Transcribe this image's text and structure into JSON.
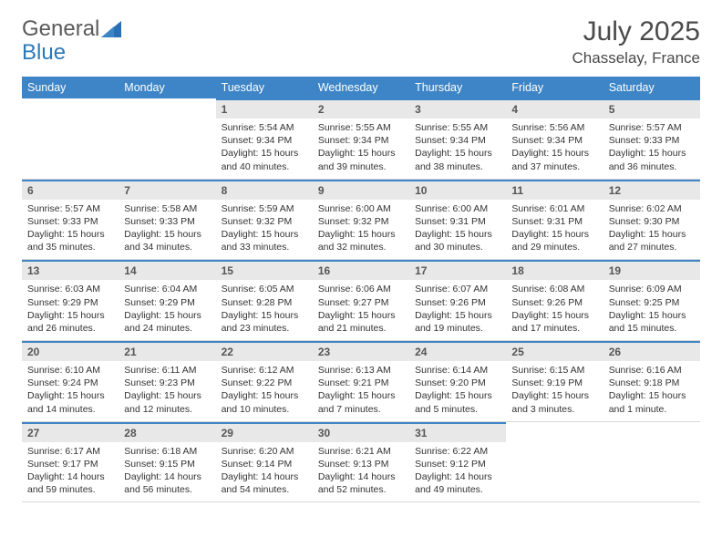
{
  "brand": {
    "name_part1": "General",
    "name_part2": "Blue"
  },
  "title": "July 2025",
  "location": "Chasselay, France",
  "colors": {
    "header_bg": "#3d85c6",
    "header_text": "#ffffff",
    "accent_border": "#3d85c6",
    "daynum_bg": "#e8e8e8"
  },
  "days_of_week": [
    "Sunday",
    "Monday",
    "Tuesday",
    "Wednesday",
    "Thursday",
    "Friday",
    "Saturday"
  ],
  "weeks": [
    [
      {
        "n": "",
        "sunrise": "",
        "sunset": "",
        "daylight": ""
      },
      {
        "n": "",
        "sunrise": "",
        "sunset": "",
        "daylight": ""
      },
      {
        "n": "1",
        "sunrise": "Sunrise: 5:54 AM",
        "sunset": "Sunset: 9:34 PM",
        "daylight": "Daylight: 15 hours and 40 minutes."
      },
      {
        "n": "2",
        "sunrise": "Sunrise: 5:55 AM",
        "sunset": "Sunset: 9:34 PM",
        "daylight": "Daylight: 15 hours and 39 minutes."
      },
      {
        "n": "3",
        "sunrise": "Sunrise: 5:55 AM",
        "sunset": "Sunset: 9:34 PM",
        "daylight": "Daylight: 15 hours and 38 minutes."
      },
      {
        "n": "4",
        "sunrise": "Sunrise: 5:56 AM",
        "sunset": "Sunset: 9:34 PM",
        "daylight": "Daylight: 15 hours and 37 minutes."
      },
      {
        "n": "5",
        "sunrise": "Sunrise: 5:57 AM",
        "sunset": "Sunset: 9:33 PM",
        "daylight": "Daylight: 15 hours and 36 minutes."
      }
    ],
    [
      {
        "n": "6",
        "sunrise": "Sunrise: 5:57 AM",
        "sunset": "Sunset: 9:33 PM",
        "daylight": "Daylight: 15 hours and 35 minutes."
      },
      {
        "n": "7",
        "sunrise": "Sunrise: 5:58 AM",
        "sunset": "Sunset: 9:33 PM",
        "daylight": "Daylight: 15 hours and 34 minutes."
      },
      {
        "n": "8",
        "sunrise": "Sunrise: 5:59 AM",
        "sunset": "Sunset: 9:32 PM",
        "daylight": "Daylight: 15 hours and 33 minutes."
      },
      {
        "n": "9",
        "sunrise": "Sunrise: 6:00 AM",
        "sunset": "Sunset: 9:32 PM",
        "daylight": "Daylight: 15 hours and 32 minutes."
      },
      {
        "n": "10",
        "sunrise": "Sunrise: 6:00 AM",
        "sunset": "Sunset: 9:31 PM",
        "daylight": "Daylight: 15 hours and 30 minutes."
      },
      {
        "n": "11",
        "sunrise": "Sunrise: 6:01 AM",
        "sunset": "Sunset: 9:31 PM",
        "daylight": "Daylight: 15 hours and 29 minutes."
      },
      {
        "n": "12",
        "sunrise": "Sunrise: 6:02 AM",
        "sunset": "Sunset: 9:30 PM",
        "daylight": "Daylight: 15 hours and 27 minutes."
      }
    ],
    [
      {
        "n": "13",
        "sunrise": "Sunrise: 6:03 AM",
        "sunset": "Sunset: 9:29 PM",
        "daylight": "Daylight: 15 hours and 26 minutes."
      },
      {
        "n": "14",
        "sunrise": "Sunrise: 6:04 AM",
        "sunset": "Sunset: 9:29 PM",
        "daylight": "Daylight: 15 hours and 24 minutes."
      },
      {
        "n": "15",
        "sunrise": "Sunrise: 6:05 AM",
        "sunset": "Sunset: 9:28 PM",
        "daylight": "Daylight: 15 hours and 23 minutes."
      },
      {
        "n": "16",
        "sunrise": "Sunrise: 6:06 AM",
        "sunset": "Sunset: 9:27 PM",
        "daylight": "Daylight: 15 hours and 21 minutes."
      },
      {
        "n": "17",
        "sunrise": "Sunrise: 6:07 AM",
        "sunset": "Sunset: 9:26 PM",
        "daylight": "Daylight: 15 hours and 19 minutes."
      },
      {
        "n": "18",
        "sunrise": "Sunrise: 6:08 AM",
        "sunset": "Sunset: 9:26 PM",
        "daylight": "Daylight: 15 hours and 17 minutes."
      },
      {
        "n": "19",
        "sunrise": "Sunrise: 6:09 AM",
        "sunset": "Sunset: 9:25 PM",
        "daylight": "Daylight: 15 hours and 15 minutes."
      }
    ],
    [
      {
        "n": "20",
        "sunrise": "Sunrise: 6:10 AM",
        "sunset": "Sunset: 9:24 PM",
        "daylight": "Daylight: 15 hours and 14 minutes."
      },
      {
        "n": "21",
        "sunrise": "Sunrise: 6:11 AM",
        "sunset": "Sunset: 9:23 PM",
        "daylight": "Daylight: 15 hours and 12 minutes."
      },
      {
        "n": "22",
        "sunrise": "Sunrise: 6:12 AM",
        "sunset": "Sunset: 9:22 PM",
        "daylight": "Daylight: 15 hours and 10 minutes."
      },
      {
        "n": "23",
        "sunrise": "Sunrise: 6:13 AM",
        "sunset": "Sunset: 9:21 PM",
        "daylight": "Daylight: 15 hours and 7 minutes."
      },
      {
        "n": "24",
        "sunrise": "Sunrise: 6:14 AM",
        "sunset": "Sunset: 9:20 PM",
        "daylight": "Daylight: 15 hours and 5 minutes."
      },
      {
        "n": "25",
        "sunrise": "Sunrise: 6:15 AM",
        "sunset": "Sunset: 9:19 PM",
        "daylight": "Daylight: 15 hours and 3 minutes."
      },
      {
        "n": "26",
        "sunrise": "Sunrise: 6:16 AM",
        "sunset": "Sunset: 9:18 PM",
        "daylight": "Daylight: 15 hours and 1 minute."
      }
    ],
    [
      {
        "n": "27",
        "sunrise": "Sunrise: 6:17 AM",
        "sunset": "Sunset: 9:17 PM",
        "daylight": "Daylight: 14 hours and 59 minutes."
      },
      {
        "n": "28",
        "sunrise": "Sunrise: 6:18 AM",
        "sunset": "Sunset: 9:15 PM",
        "daylight": "Daylight: 14 hours and 56 minutes."
      },
      {
        "n": "29",
        "sunrise": "Sunrise: 6:20 AM",
        "sunset": "Sunset: 9:14 PM",
        "daylight": "Daylight: 14 hours and 54 minutes."
      },
      {
        "n": "30",
        "sunrise": "Sunrise: 6:21 AM",
        "sunset": "Sunset: 9:13 PM",
        "daylight": "Daylight: 14 hours and 52 minutes."
      },
      {
        "n": "31",
        "sunrise": "Sunrise: 6:22 AM",
        "sunset": "Sunset: 9:12 PM",
        "daylight": "Daylight: 14 hours and 49 minutes."
      },
      {
        "n": "",
        "sunrise": "",
        "sunset": "",
        "daylight": ""
      },
      {
        "n": "",
        "sunrise": "",
        "sunset": "",
        "daylight": ""
      }
    ]
  ]
}
